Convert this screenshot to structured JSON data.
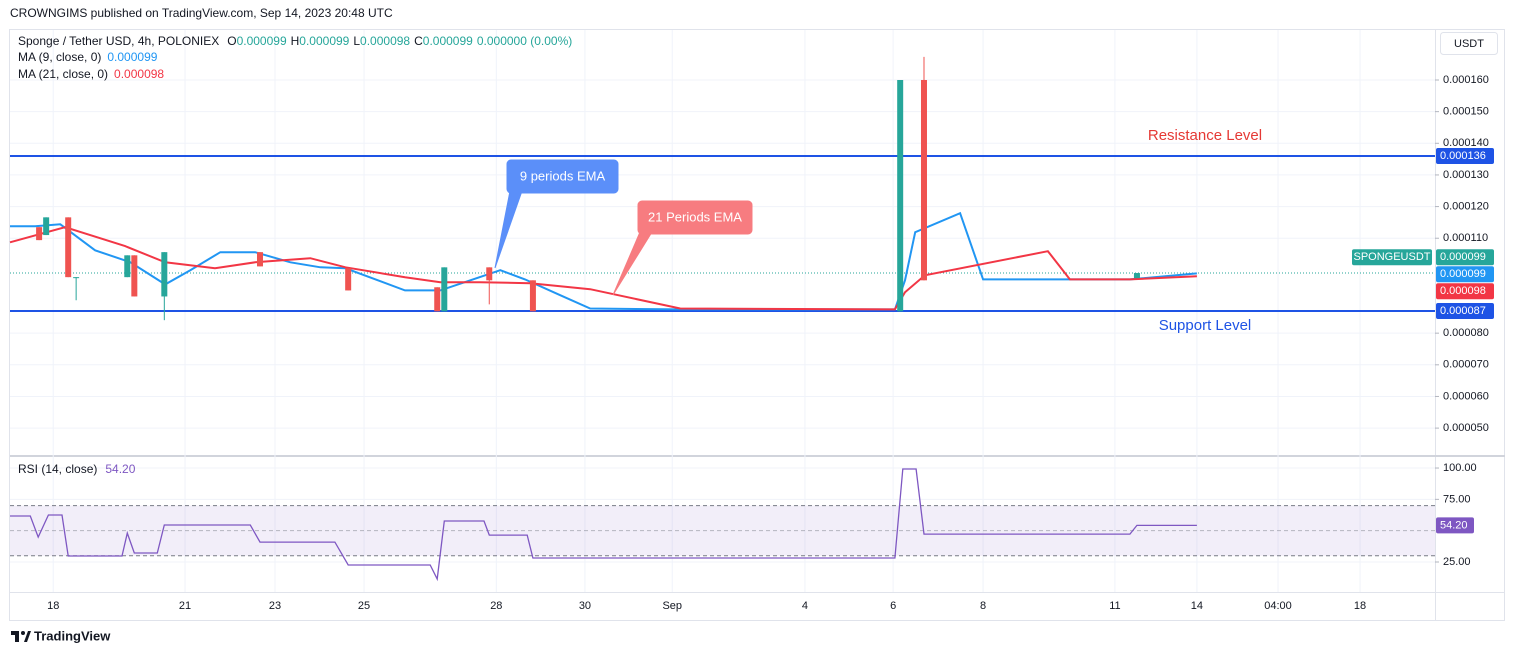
{
  "header": {
    "published": "CROWNGIMS published on TradingView.com, Sep 14, 2023 20:48 UTC",
    "currency_button": "USDT",
    "footer_logo": "TradingView"
  },
  "chart_data": [
    {
      "type": "candlestick",
      "title": "Sponge / Tether USD, 4h, POLONIEX",
      "ohlc_legend": [
        {
          "key": "O",
          "text": "0.000099"
        },
        {
          "key": "H",
          "text": "0.000099"
        },
        {
          "key": "L",
          "text": "0.000098"
        },
        {
          "key": "C",
          "text": "0.000099"
        }
      ],
      "change": "0.000000 (0.00%)",
      "up_color": "#26a69a",
      "down_color": "#ef5350",
      "x": [
        17.68,
        17.84,
        18.34,
        18.52,
        19.68,
        19.84,
        20.52,
        22.69,
        24.69,
        26.71,
        26.87,
        27.89,
        28.88,
        37.21,
        37.75,
        42.58
      ],
      "open": [
        0.0001135,
        0.000111,
        0.0001166,
        9.77e-05,
        9.77e-05,
        0.0001046,
        9.16e-05,
        0.0001056,
        0.0001005,
        9.45e-05,
        8.69e-05,
        0.0001008,
        9.67e-05,
        8.69e-05,
        0.00016,
        9.74e-05
      ],
      "high": [
        0.0001135,
        0.0001166,
        0.0001166,
        9.77e-05,
        0.0001046,
        0.0001046,
        0.0001056,
        0.0001056,
        0.0001005,
        9.45e-05,
        0.0001008,
        0.0001008,
        9.67e-05,
        0.00016,
        0.0001673,
        9.9e-05
      ],
      "low": [
        0.0001094,
        0.000111,
        9.77e-05,
        9.04e-05,
        9.77e-05,
        9.16e-05,
        8.41e-05,
        0.0001011,
        9.35e-05,
        8.69e-05,
        8.69e-05,
        8.91e-05,
        8.69e-05,
        8.69e-05,
        9.67e-05,
        9.74e-05
      ],
      "close": [
        0.0001094,
        0.0001166,
        9.77e-05,
        9.77e-05,
        0.0001046,
        9.16e-05,
        0.0001056,
        0.0001011,
        9.35e-05,
        8.69e-05,
        0.0001008,
        9.67e-05,
        8.69e-05,
        0.00016,
        9.67e-05,
        9.9e-05
      ],
      "lines": [
        {
          "name": "MA (9, close, 0)",
          "legend_value": "0.000099",
          "color": "#2196f3",
          "x": [
            17.02,
            17.59,
            18.16,
            18.95,
            19.75,
            20.54,
            21.11,
            21.79,
            22.58,
            23.38,
            24.06,
            24.63,
            25.98,
            26.78,
            27.46,
            28.14,
            28.7,
            29.5,
            30.18,
            32.22,
            37.09,
            37.32,
            37.55,
            38.57,
            39.09,
            42.42,
            43.94
          ],
          "values": [
            0.0001138,
            0.0001138,
            0.0001144,
            0.0001062,
            0.0001024,
            9.54e-05,
            9.99e-05,
            0.0001056,
            0.0001056,
            0.0001024,
            0.0001008,
            0.0001005,
            9.35e-05,
            9.35e-05,
            9.67e-05,
            9.99e-05,
            9.7e-05,
            9.2e-05,
            8.78e-05,
            8.75e-05,
            8.75e-05,
            9.67e-05,
            0.0001119,
            0.0001179,
            9.7e-05,
            9.7e-05,
            9.89e-05
          ]
        },
        {
          "name": "MA (21, close, 0)",
          "legend_value": "0.000098",
          "color": "#f23645",
          "x": [
            17.02,
            18.27,
            19.63,
            20.54,
            21.67,
            22.58,
            23.83,
            24.63,
            25.98,
            26.78,
            27.68,
            28.82,
            30.18,
            32.22,
            37.09,
            37.32,
            37.77,
            40.56,
            41.06,
            42.42,
            43.94
          ],
          "values": [
            0.0001087,
            0.0001135,
            0.0001075,
            0.0001024,
            0.0001005,
            0.0001024,
            0.0001037,
            0.0001008,
            9.77e-05,
            9.61e-05,
            9.61e-05,
            9.58e-05,
            9.39e-05,
            8.78e-05,
            8.75e-05,
            9.29e-05,
            9.83e-05,
            0.0001059,
            9.7e-05,
            9.7e-05,
            9.8e-05
          ]
        }
      ],
      "last_price": {
        "name": "SPONGEUSDT",
        "value": 9.9e-05,
        "label": "0.000099",
        "color": "#26a69a"
      },
      "hlines": [
        {
          "value": 0.000136,
          "label": "0.000136",
          "color": "#1e53e5",
          "note": "Resistance Level",
          "note_color": "#e53935",
          "note_side": "above"
        },
        {
          "value": 8.7e-05,
          "label": "0.000087",
          "color": "#1e53e5",
          "note": "Support Level",
          "note_color": "#1e53e5",
          "note_side": "below"
        }
      ],
      "annotations": [
        {
          "text": "9 periods EMA",
          "color": "#5b8ff9"
        },
        {
          "text": "21 Periods EMA",
          "color": "#f77c80"
        }
      ],
      "xlim": [
        17.02,
        49.34
      ],
      "ylim": [
        4.15e-05,
        0.0001758
      ],
      "yticks": [
        {
          "value": 5e-05,
          "label": "0.000050"
        },
        {
          "value": 6e-05,
          "label": "0.000060"
        },
        {
          "value": 7e-05,
          "label": "0.000070"
        },
        {
          "value": 8e-05,
          "label": "0.000080"
        },
        {
          "value": 0.00011,
          "label": "0.000110"
        },
        {
          "value": 0.00012,
          "label": "0.000120"
        },
        {
          "value": 0.00013,
          "label": "0.000130"
        },
        {
          "value": 0.00014,
          "label": "0.000140"
        },
        {
          "value": 0.00015,
          "label": "0.000150"
        },
        {
          "value": 0.00016,
          "label": "0.000160"
        }
      ],
      "grid": true
    },
    {
      "type": "line",
      "name": "RSI (14, close)",
      "legend_value": "54.20",
      "color": "#7e57c2",
      "x": [
        17.02,
        17.48,
        17.66,
        17.89,
        18.2,
        18.34,
        19.56,
        19.68,
        19.84,
        20.36,
        20.52,
        22.47,
        22.69,
        24.39,
        24.69,
        26.55,
        26.71,
        26.87,
        27.77,
        27.89,
        28.75,
        28.88,
        37.09,
        37.27,
        37.57,
        37.75,
        42.42,
        42.58,
        43.94
      ],
      "values": [
        61.7,
        61.7,
        44.9,
        62.5,
        62.5,
        29.8,
        29.8,
        48.1,
        32.2,
        32.2,
        54.5,
        54.5,
        40.9,
        40.9,
        22.6,
        22.6,
        11.4,
        57.7,
        57.7,
        46.5,
        46.5,
        28.2,
        28.2,
        99.2,
        99.2,
        47.3,
        47.3,
        54.2,
        54.2
      ],
      "bands": [
        70,
        30
      ],
      "midline": 50,
      "xlim": [
        17.02,
        49.34
      ],
      "ylim": [
        1.06,
        108.8
      ],
      "yticks": [
        {
          "value": 25,
          "label": "25.00"
        },
        {
          "value": 75,
          "label": "75.00"
        },
        {
          "value": 100,
          "label": "100.00"
        }
      ],
      "xticks": [
        18,
        {
          "value": 20.99,
          "label": "21"
        },
        {
          "value": 23.03,
          "label": "23"
        },
        {
          "value": 25.05,
          "label": "25"
        },
        {
          "value": 28.05,
          "label": "28"
        },
        {
          "value": 30.06,
          "label": "30"
        },
        {
          "value": 32.04,
          "label": "Sep"
        },
        {
          "value": 35.05,
          "label": "4"
        },
        {
          "value": 37.05,
          "label": "6"
        },
        {
          "value": 39.09,
          "label": "8"
        },
        {
          "value": 42.08,
          "label": "11"
        },
        {
          "value": 43.94,
          "label": "14"
        },
        {
          "value": 45.78,
          "label": "04:00"
        },
        {
          "value": 47.64,
          "label": "18"
        }
      ],
      "grid": true
    }
  ]
}
